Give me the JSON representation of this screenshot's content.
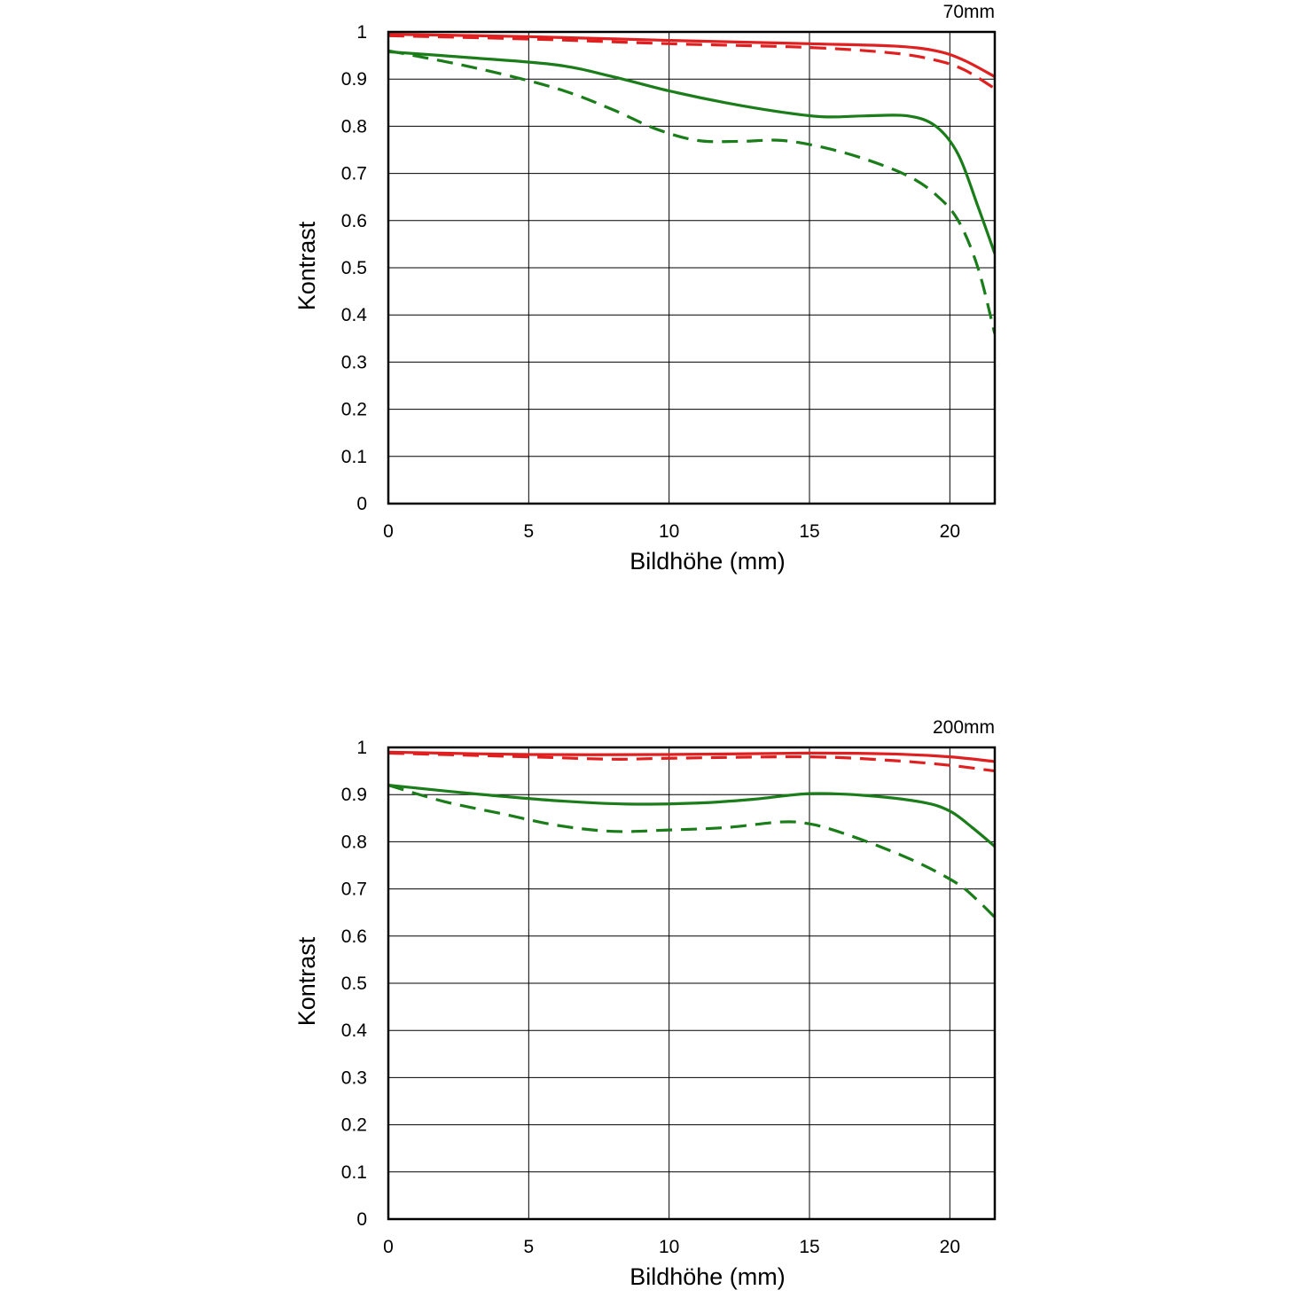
{
  "chart_data": [
    {
      "type": "line",
      "title": "70mm",
      "xlabel": "Bildhöhe (mm)",
      "ylabel": "Kontrast",
      "xlim": [
        0,
        21.6
      ],
      "ylim": [
        0,
        1
      ],
      "xticks": [
        0,
        5,
        10,
        15,
        20
      ],
      "yticks": [
        0,
        0.1,
        0.2,
        0.3,
        0.4,
        0.5,
        0.6,
        0.7,
        0.8,
        0.9,
        1
      ],
      "xtick_labels": [
        "0",
        "5",
        "10",
        "15",
        "20"
      ],
      "ytick_labels": [
        "0",
        "0.1",
        "0.2",
        "0.3",
        "0.4",
        "0.5",
        "0.6",
        "0.7",
        "0.8",
        "0.9",
        "1"
      ],
      "grid": true,
      "series": [
        {
          "name": "red-solid",
          "color": "#e02020",
          "dash": "solid",
          "x": [
            0,
            5,
            10,
            15,
            18,
            19.5,
            20.5,
            21.6
          ],
          "y": [
            0.995,
            0.99,
            0.982,
            0.975,
            0.97,
            0.96,
            0.94,
            0.905
          ]
        },
        {
          "name": "red-dashed",
          "color": "#e02020",
          "dash": "dashed",
          "x": [
            0,
            5,
            10,
            15,
            18,
            19.5,
            20.5,
            21.6
          ],
          "y": [
            0.992,
            0.985,
            0.975,
            0.967,
            0.955,
            0.94,
            0.92,
            0.88
          ]
        },
        {
          "name": "green-solid",
          "color": "#1a7d1a",
          "dash": "solid",
          "x": [
            0,
            3,
            6,
            8,
            10,
            12,
            14,
            15.5,
            17,
            18.5,
            19.5,
            20.3,
            21,
            21.6
          ],
          "y": [
            0.958,
            0.945,
            0.93,
            0.905,
            0.875,
            0.85,
            0.83,
            0.82,
            0.822,
            0.822,
            0.8,
            0.74,
            0.63,
            0.53
          ]
        },
        {
          "name": "green-dashed",
          "color": "#1a7d1a",
          "dash": "dashed",
          "x": [
            0,
            3,
            6,
            8,
            9.5,
            11,
            12.5,
            14,
            15.5,
            17,
            18.5,
            19.5,
            20.3,
            21,
            21.6
          ],
          "y": [
            0.96,
            0.925,
            0.88,
            0.835,
            0.795,
            0.77,
            0.768,
            0.77,
            0.755,
            0.73,
            0.695,
            0.655,
            0.6,
            0.5,
            0.36
          ]
        }
      ]
    },
    {
      "type": "line",
      "title": "200mm",
      "xlabel": "Bildhöhe (mm)",
      "ylabel": "Kontrast",
      "xlim": [
        0,
        21.6
      ],
      "ylim": [
        0,
        1
      ],
      "xticks": [
        0,
        5,
        10,
        15,
        20
      ],
      "yticks": [
        0,
        0.1,
        0.2,
        0.3,
        0.4,
        0.5,
        0.6,
        0.7,
        0.8,
        0.9,
        1
      ],
      "xtick_labels": [
        "0",
        "5",
        "10",
        "15",
        "20"
      ],
      "ytick_labels": [
        "0",
        "0.1",
        "0.2",
        "0.3",
        "0.4",
        "0.5",
        "0.6",
        "0.7",
        "0.8",
        "0.9",
        "1"
      ],
      "grid": true,
      "series": [
        {
          "name": "red-solid",
          "color": "#e02020",
          "dash": "solid",
          "x": [
            0,
            5,
            10,
            15,
            18,
            20,
            21.6
          ],
          "y": [
            0.99,
            0.985,
            0.985,
            0.988,
            0.986,
            0.98,
            0.97
          ]
        },
        {
          "name": "red-dashed",
          "color": "#e02020",
          "dash": "dashed",
          "x": [
            0,
            5,
            8,
            10,
            15,
            18,
            20,
            21.6
          ],
          "y": [
            0.988,
            0.98,
            0.975,
            0.977,
            0.98,
            0.972,
            0.962,
            0.95
          ]
        },
        {
          "name": "green-solid",
          "color": "#1a7d1a",
          "dash": "solid",
          "x": [
            0,
            3,
            6,
            8.5,
            11,
            13,
            15,
            17,
            19,
            20,
            20.8,
            21.6
          ],
          "y": [
            0.92,
            0.902,
            0.887,
            0.88,
            0.882,
            0.89,
            0.902,
            0.898,
            0.884,
            0.865,
            0.83,
            0.79
          ]
        },
        {
          "name": "green-dashed",
          "color": "#1a7d1a",
          "dash": "dashed",
          "x": [
            0,
            2,
            4,
            6,
            8,
            10,
            12,
            14,
            15,
            16,
            17.5,
            19,
            20.3,
            21,
            21.6
          ],
          "y": [
            0.92,
            0.885,
            0.86,
            0.835,
            0.822,
            0.825,
            0.83,
            0.842,
            0.838,
            0.822,
            0.79,
            0.752,
            0.71,
            0.675,
            0.64
          ]
        }
      ]
    }
  ]
}
